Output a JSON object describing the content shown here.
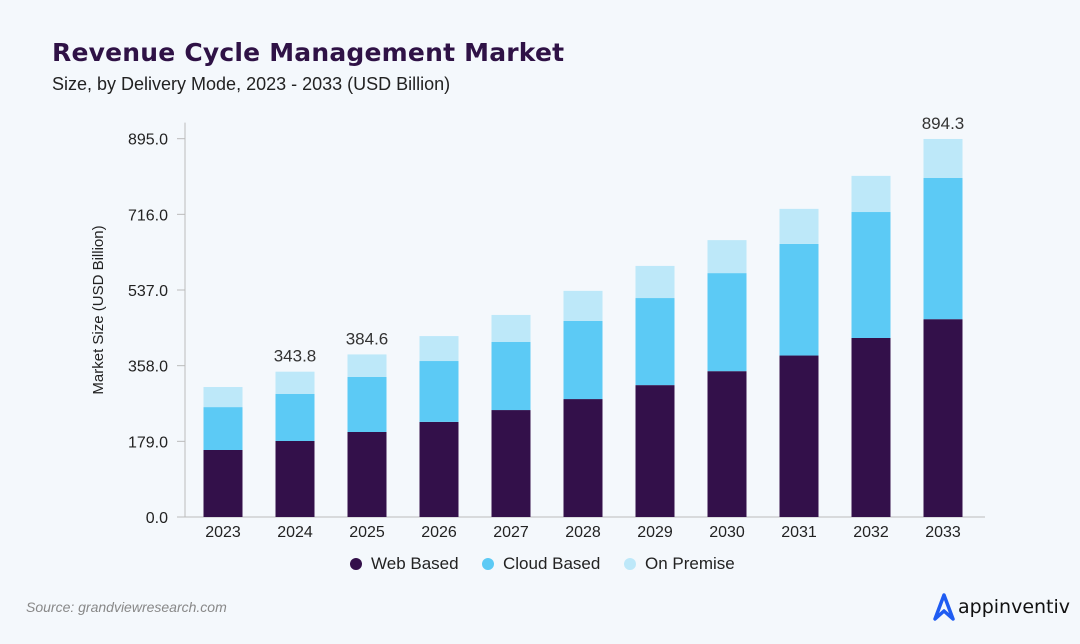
{
  "chart_data": {
    "type": "bar",
    "stacked": true,
    "title": "Revenue Cycle Management Market",
    "subtitle": "Size, by Delivery Mode, 2023 - 2033 (USD Billion)",
    "xlabel": "",
    "ylabel": "Market Size (USD Billion)",
    "ylim": [
      0,
      895
    ],
    "yticks": [
      "0.0",
      "179.0",
      "358.0",
      "537.0",
      "716.0",
      "895.0"
    ],
    "ytick_values": [
      0,
      179,
      358,
      537,
      716,
      895
    ],
    "grid": false,
    "legend_position": "bottom",
    "categories": [
      "2023",
      "2024",
      "2025",
      "2026",
      "2027",
      "2028",
      "2029",
      "2030",
      "2031",
      "2032",
      "2033"
    ],
    "series": [
      {
        "name": "Web Based",
        "color": "#33104a",
        "values": [
          158.5,
          179.8,
          201.1,
          225,
          253,
          279,
          312,
          345,
          382,
          423.5,
          468
        ]
      },
      {
        "name": "Cloud Based",
        "color": "#5ccaf5",
        "values": [
          101.5,
          111.2,
          130.2,
          144,
          161,
          185,
          206,
          232,
          264,
          298,
          334
        ]
      },
      {
        "name": "On Premise",
        "color": "#bde8f9",
        "values": [
          47.5,
          52.8,
          53.3,
          59,
          64,
          71,
          76,
          78,
          83,
          85.5,
          92.3
        ]
      }
    ],
    "data_labels": [
      {
        "category": "2024",
        "text": "343.8"
      },
      {
        "category": "2025",
        "text": "384.6"
      },
      {
        "category": "2033",
        "text": "894.3"
      }
    ]
  },
  "footer": {
    "source": "Source: grandviewresearch.com",
    "brand": "appinventiv"
  }
}
